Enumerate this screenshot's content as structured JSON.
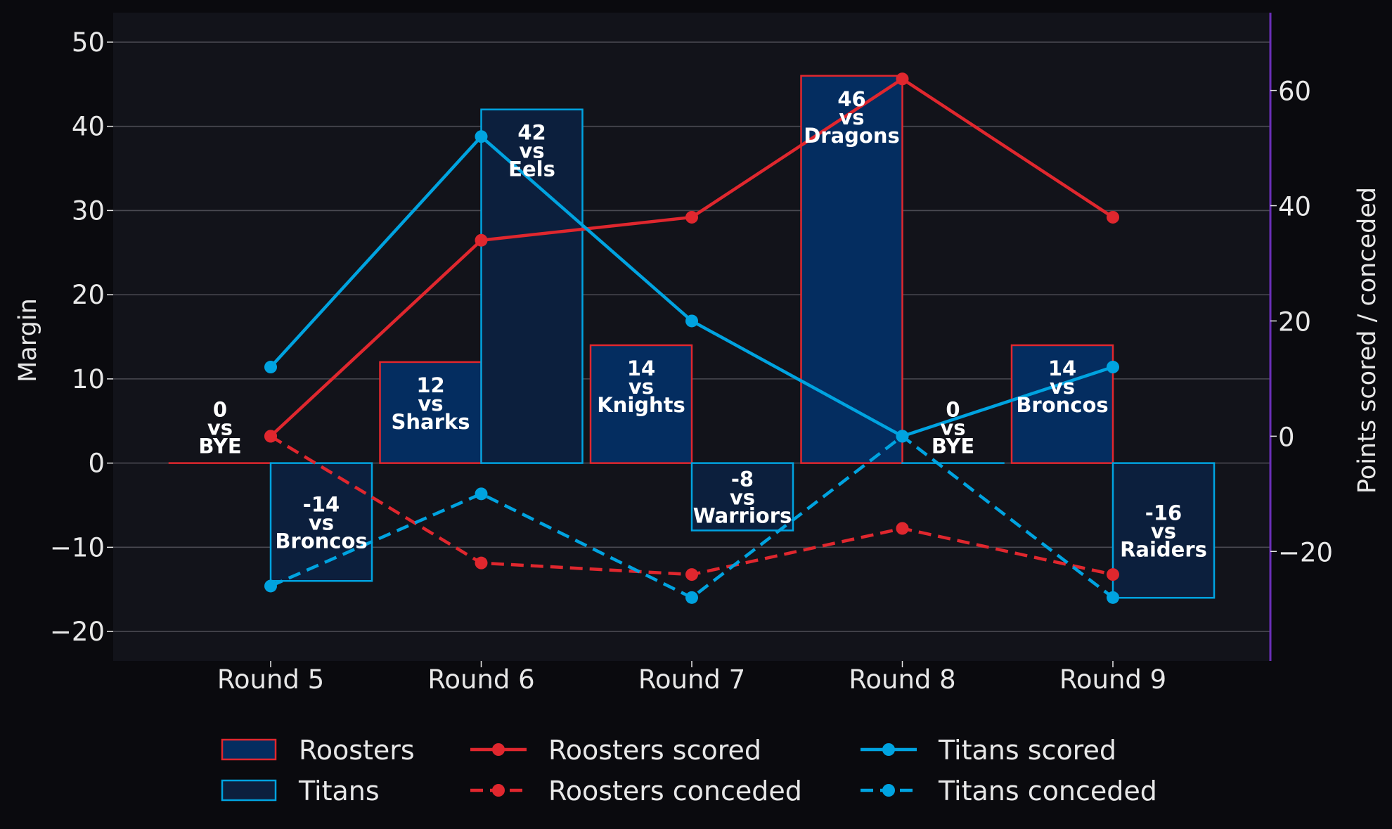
{
  "chart_data": {
    "type": "bar",
    "categories": [
      "Round 5",
      "Round 6",
      "Round 7",
      "Round 8",
      "Round 9"
    ],
    "ylabel": "Margin",
    "y2label": "Points scored / conceded",
    "ylim": [
      -23.5,
      53.5
    ],
    "y2lim": [
      -39,
      73.5
    ],
    "yticks": [
      "50",
      "40",
      "30",
      "20",
      "10",
      "0",
      "−10",
      "−20"
    ],
    "yticks_values": [
      50,
      40,
      30,
      20,
      10,
      0,
      -10,
      -20
    ],
    "y2ticks": [
      "60",
      "40",
      "20",
      "0",
      "−20"
    ],
    "y2ticks_values": [
      60,
      40,
      20,
      0,
      -20
    ],
    "grid": true,
    "legend_position": "bottom",
    "bar_series": [
      {
        "name": "Roosters",
        "values": [
          0,
          12,
          14,
          46,
          14
        ],
        "opponents": [
          "BYE",
          "Sharks",
          "Knights",
          "Dragons",
          "Broncos"
        ],
        "labels": [
          [
            "0",
            "vs",
            "BYE"
          ],
          [
            "12",
            "vs",
            "Sharks"
          ],
          [
            "14",
            "vs",
            "Knights"
          ],
          [
            "46",
            "vs",
            "Dragons"
          ],
          [
            "14",
            "vs",
            "Broncos"
          ]
        ],
        "fill": "#042d60",
        "edge": "#e0272e"
      },
      {
        "name": "Titans",
        "values": [
          -14,
          42,
          -8,
          0,
          -16
        ],
        "opponents": [
          "Broncos",
          "Eels",
          "Warriors",
          "BYE",
          "Raiders"
        ],
        "labels": [
          [
            "-14",
            "vs",
            "Broncos"
          ],
          [
            "42",
            "vs",
            "Eels"
          ],
          [
            "-8",
            "vs",
            "Warriors"
          ],
          [
            "0",
            "vs",
            "BYE"
          ],
          [
            "-16",
            "vs",
            "Raiders"
          ]
        ],
        "fill": "#0c1f3d",
        "edge": "#00a3e0"
      }
    ],
    "line_series": [
      {
        "name": "Roosters scored",
        "values": [
          0,
          34,
          38,
          62,
          38
        ],
        "color": "#e0272e",
        "dashed": false
      },
      {
        "name": "Roosters conceded",
        "values": [
          0,
          -22,
          -24,
          -16,
          -24
        ],
        "color": "#e0272e",
        "dashed": true
      },
      {
        "name": "Titans scored",
        "values": [
          12,
          52,
          20,
          0,
          12
        ],
        "color": "#00a3e0",
        "dashed": false
      },
      {
        "name": "Titans conceded",
        "values": [
          -26,
          -10,
          -28,
          0,
          -28
        ],
        "color": "#00a3e0",
        "dashed": true
      }
    ]
  }
}
